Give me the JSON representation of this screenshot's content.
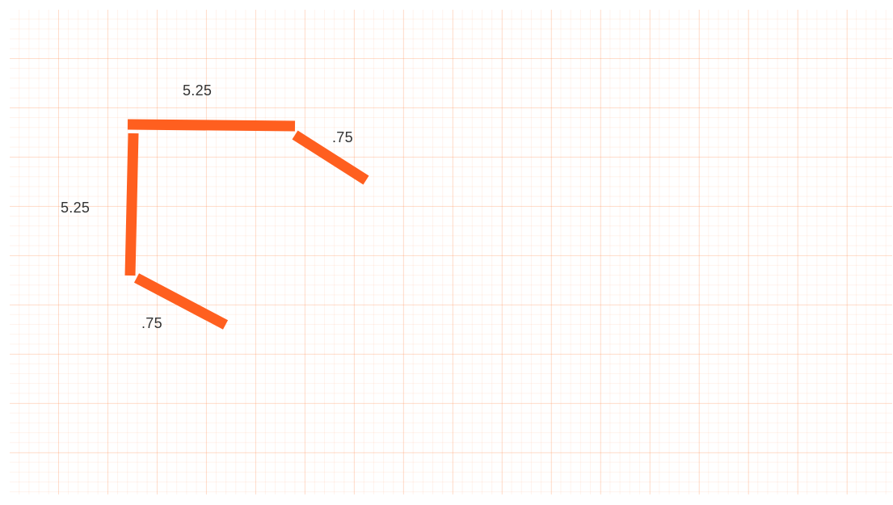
{
  "stroke_color": "#ff5f1f",
  "grid_color": "#ffd8c2",
  "labels": {
    "top_segment": "5.25",
    "top_right_segment": ".75",
    "left_segment": "5.25",
    "bottom_left_segment": ".75"
  }
}
